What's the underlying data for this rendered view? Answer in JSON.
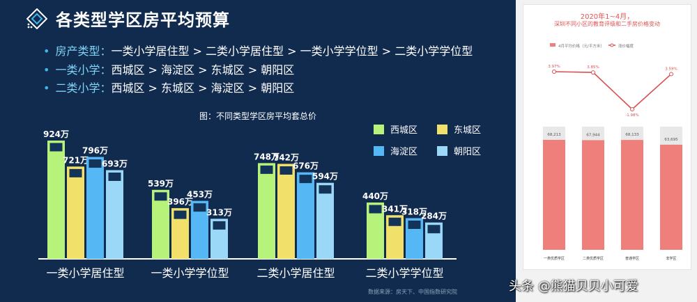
{
  "title": "各类型学区房平均预算",
  "bullets": [
    {
      "label": "房产类型：",
      "text": "一类小学居住型 > 二类小学居住型 > 一类小学学位型 > 二类小学学位型"
    },
    {
      "label": "一类小学：",
      "text": "西城区 > 海淀区 > 东城区 > 朝阳区"
    },
    {
      "label": "二类小学：",
      "text": "西城区 > 东城区 > 海淀区 > 朝阳区"
    }
  ],
  "source_note": "数据来源：房天下、中国指数研究院",
  "colors": {
    "xicheng": "#b7f27a",
    "dongcheng": "#f1e06a",
    "haidian": "#55b8f5",
    "chaoyang": "#9bd8f7"
  },
  "chart_data": [
    {
      "type": "bar",
      "title": "图：不同类型学区房平均套总价",
      "unit": "万",
      "categories": [
        "一类小学居住型",
        "一类小学学位型",
        "二类小学居住型",
        "二类小学学位型"
      ],
      "series": [
        {
          "name": "西城区",
          "values": [
            924,
            539,
            748,
            440
          ]
        },
        {
          "name": "东城区",
          "values": [
            721,
            396,
            742,
            341
          ]
        },
        {
          "name": "海淀区",
          "values": [
            796,
            453,
            676,
            318
          ]
        },
        {
          "name": "朝阳区",
          "values": [
            693,
            313,
            594,
            284
          ]
        }
      ],
      "ylim": [
        0,
        1000
      ],
      "legend_position": "top-right",
      "grid": false
    },
    {
      "type": "bar",
      "title": "2020年1~4月，",
      "subtitle": "深圳不同小区的教育评级和二手房价格变动",
      "categories": [
        "一类优质学区",
        "二类优质学区",
        "普通学区",
        "非学区"
      ],
      "series": [
        {
          "name": "4月平均价格（元/平方米）",
          "type": "bar",
          "values": [
            68213,
            67944,
            68133,
            63695
          ]
        },
        {
          "name": "涨价幅度",
          "type": "line",
          "values": [
            3.97,
            3.85,
            -1.98,
            3.59
          ]
        }
      ],
      "legend_position": "top"
    }
  ],
  "watermark": "头条 @熊猫贝贝小可爱"
}
